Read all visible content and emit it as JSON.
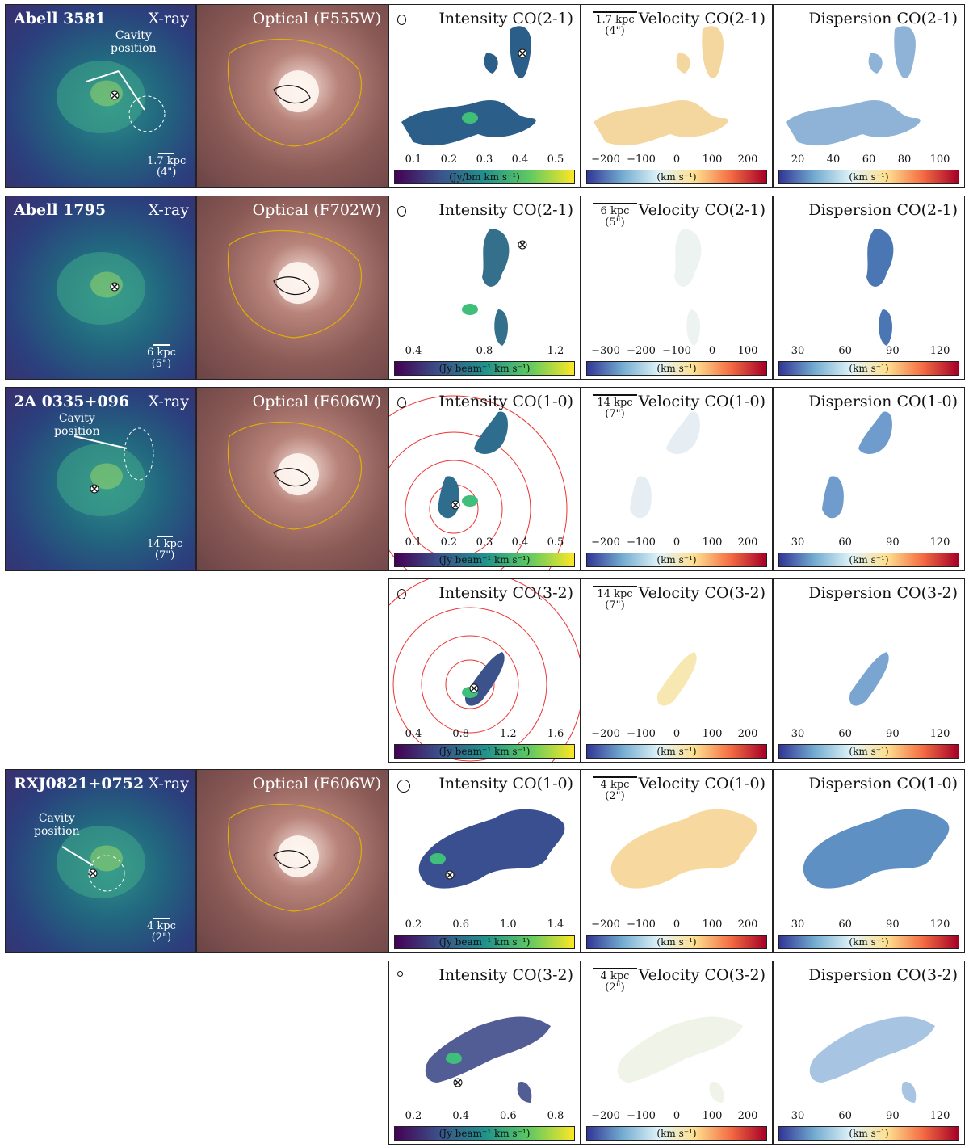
{
  "rows": [
    {
      "cluster": "Abell 3581",
      "xray": {
        "title": "X-ray",
        "cavity": "Cavity\nposition",
        "scale": "1.7 kpc",
        "scale_arcsec": "(4\")"
      },
      "optical": {
        "title": "Optical (F555W)"
      },
      "intensity": {
        "title": "Intensity CO(2-1)",
        "ticks": [
          "0.1",
          "0.2",
          "0.3",
          "0.4",
          "0.5"
        ],
        "unit": "(Jy/bm km s⁻¹)"
      },
      "velocity": {
        "title": "Velocity CO(2-1)",
        "scale": "1.7 kpc",
        "scale_arcsec": "(4\")",
        "ticks": [
          "−200",
          "−100",
          "0",
          "100",
          "200"
        ],
        "unit": "(km s⁻¹)"
      },
      "dispersion": {
        "title": "Dispersion CO(2-1)",
        "ticks": [
          "20",
          "40",
          "60",
          "80",
          "100"
        ],
        "unit": "(km s⁻¹)"
      }
    },
    {
      "cluster": "Abell 1795",
      "xray": {
        "title": "X-ray",
        "scale": "6 kpc",
        "scale_arcsec": "(5\")"
      },
      "optical": {
        "title": "Optical (F702W)"
      },
      "intensity": {
        "title": "Intensity CO(2-1)",
        "ticks": [
          "0.4",
          "0.8",
          "1.2"
        ],
        "unit": "(Jy beam⁻¹ km s⁻¹)"
      },
      "velocity": {
        "title": "Velocity CO(2-1)",
        "scale": "6 kpc",
        "scale_arcsec": "(5\")",
        "ticks": [
          "−300",
          "−200",
          "−100",
          "0",
          "100"
        ],
        "unit": "(km s⁻¹)"
      },
      "dispersion": {
        "title": "Dispersion CO(2-1)",
        "ticks": [
          "30",
          "60",
          "90",
          "120"
        ],
        "unit": "(km s⁻¹)"
      }
    },
    {
      "cluster": "2A 0335+096",
      "xray": {
        "title": "X-ray",
        "cavity": "Cavity\nposition",
        "scale": "14 kpc",
        "scale_arcsec": "(7\")"
      },
      "optical": {
        "title": "Optical (F606W)"
      },
      "intensity": {
        "title": "Intensity CO(1-0)",
        "ticks": [
          "0.1",
          "0.2",
          "0.3",
          "0.4",
          "0.5"
        ],
        "unit": "(Jy beam⁻¹ km s⁻¹)"
      },
      "velocity": {
        "title": "Velocity CO(1-0)",
        "scale": "14 kpc",
        "scale_arcsec": "(7\")",
        "ticks": [
          "−200",
          "−100",
          "0",
          "100",
          "200"
        ],
        "unit": "(km s⁻¹)"
      },
      "dispersion": {
        "title": "Dispersion CO(1-0)",
        "ticks": [
          "30",
          "60",
          "90",
          "120"
        ],
        "unit": "(km s⁻¹)"
      }
    },
    {
      "intensity": {
        "title": "Intensity CO(3-2)",
        "ticks": [
          "0.4",
          "0.8",
          "1.2",
          "1.6"
        ],
        "unit": "(Jy beam⁻¹ km s⁻¹)"
      },
      "velocity": {
        "title": "Velocity CO(3-2)",
        "scale": "14 kpc",
        "scale_arcsec": "(7\")",
        "ticks": [
          "−200",
          "−100",
          "0",
          "100",
          "200"
        ],
        "unit": "(km s⁻¹)"
      },
      "dispersion": {
        "title": "Dispersion CO(3-2)",
        "ticks": [
          "30",
          "60",
          "90",
          "120"
        ],
        "unit": "(km s⁻¹)"
      }
    },
    {
      "cluster": "RXJ0821+0752",
      "xray": {
        "title": "X-ray",
        "cavity": "Cavity\nposition",
        "scale": "4 kpc",
        "scale_arcsec": "(2\")"
      },
      "optical": {
        "title": "Optical (F606W)"
      },
      "intensity": {
        "title": "Intensity CO(1-0)",
        "ticks": [
          "0.2",
          "0.6",
          "1.0",
          "1.4"
        ],
        "unit": "(Jy beam⁻¹ km s⁻¹)"
      },
      "velocity": {
        "title": "Velocity CO(1-0)",
        "scale": "4 kpc",
        "scale_arcsec": "(2\")",
        "ticks": [
          "−200",
          "−100",
          "0",
          "100",
          "200"
        ],
        "unit": "(km s⁻¹)"
      },
      "dispersion": {
        "title": "Dispersion CO(1-0)",
        "ticks": [
          "30",
          "60",
          "90",
          "120"
        ],
        "unit": "(km s⁻¹)"
      }
    },
    {
      "intensity": {
        "title": "Intensity CO(3-2)",
        "ticks": [
          "0.2",
          "0.4",
          "0.6",
          "0.8"
        ],
        "unit": "(Jy beam⁻¹ km s⁻¹)"
      },
      "velocity": {
        "title": "Velocity CO(3-2)",
        "scale": "4 kpc",
        "scale_arcsec": "(2\")",
        "ticks": [
          "−200",
          "−100",
          "0",
          "100",
          "200"
        ],
        "unit": "(km s⁻¹)"
      },
      "dispersion": {
        "title": "Dispersion CO(3-2)",
        "ticks": [
          "30",
          "60",
          "90",
          "120"
        ],
        "unit": "(km s⁻¹)"
      }
    }
  ]
}
